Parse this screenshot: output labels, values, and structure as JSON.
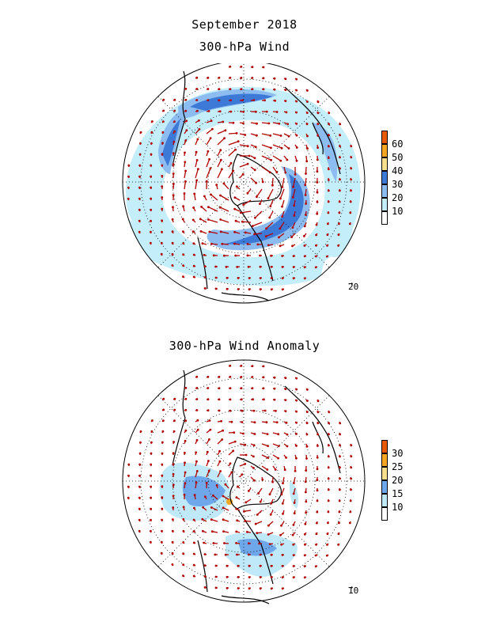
{
  "titles": {
    "main": "September 2018",
    "top_map": "300-hPa Wind",
    "bottom_map": "300-hPa Wind Anomaly"
  },
  "top_map": {
    "colorbar": {
      "labels": [
        "60",
        "50",
        "40",
        "30",
        "20",
        "10"
      ],
      "colors": [
        "#e85a00",
        "#f5a623",
        "#f8e08e",
        "#3d79d6",
        "#8dbdf0",
        "#c4eefa",
        "#ffffff"
      ]
    },
    "reference_vector": "20"
  },
  "bottom_map": {
    "colorbar": {
      "labels": [
        "30",
        "25",
        "20",
        "15",
        "10"
      ],
      "colors": [
        "#e85a00",
        "#f5a623",
        "#f8e08e",
        "#6fa8ea",
        "#bfe8f8",
        "#ffffff"
      ]
    },
    "reference_vector": "10"
  },
  "colors": {
    "vector": "#b00000",
    "coastline": "#000000"
  }
}
